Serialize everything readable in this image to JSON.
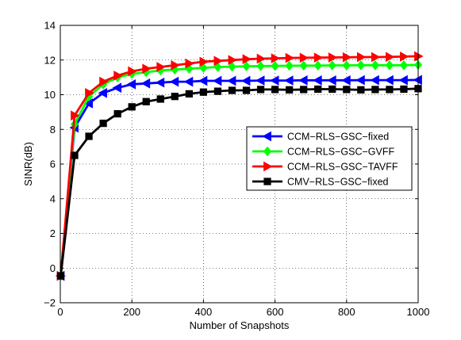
{
  "chart_data": {
    "type": "line",
    "title": "",
    "xlabel": "Number of Snapshots",
    "ylabel": "SINR(dB)",
    "xlim": [
      0,
      1000
    ],
    "ylim": [
      -2,
      14
    ],
    "xticks": [
      0,
      200,
      400,
      600,
      800,
      1000
    ],
    "yticks": [
      -2,
      0,
      2,
      4,
      6,
      8,
      10,
      12,
      14
    ],
    "grid": true,
    "legend_position": "center-right",
    "x": [
      1,
      40,
      80,
      120,
      160,
      200,
      240,
      280,
      320,
      360,
      400,
      440,
      480,
      520,
      560,
      600,
      640,
      680,
      720,
      760,
      800,
      840,
      880,
      920,
      960,
      1000
    ],
    "series": [
      {
        "name": "CCM−RLS−GSC−fixed",
        "color": "#0000ff",
        "marker": "triangle-left",
        "values": [
          -0.45,
          8.1,
          9.5,
          10.1,
          10.4,
          10.6,
          10.65,
          10.7,
          10.75,
          10.75,
          10.8,
          10.8,
          10.8,
          10.8,
          10.82,
          10.82,
          10.82,
          10.83,
          10.83,
          10.83,
          10.83,
          10.84,
          10.84,
          10.84,
          10.84,
          10.85
        ]
      },
      {
        "name": "CCM−RLS−GSC−GVFF",
        "color": "#00ff00",
        "marker": "diamond",
        "values": [
          -0.45,
          8.3,
          9.9,
          10.6,
          11.0,
          11.2,
          11.3,
          11.4,
          11.45,
          11.5,
          11.55,
          11.6,
          11.62,
          11.64,
          11.65,
          11.66,
          11.67,
          11.68,
          11.68,
          11.69,
          11.69,
          11.7,
          11.7,
          11.7,
          11.7,
          11.72
        ]
      },
      {
        "name": "CCM−RLS−GSC−TAVFF",
        "color": "#ff0000",
        "marker": "triangle-right",
        "values": [
          -0.45,
          8.8,
          10.1,
          10.75,
          11.1,
          11.35,
          11.5,
          11.6,
          11.7,
          11.8,
          11.9,
          11.95,
          12.0,
          12.05,
          12.08,
          12.1,
          12.12,
          12.13,
          12.14,
          12.15,
          12.16,
          12.17,
          12.17,
          12.18,
          12.2,
          12.22
        ]
      },
      {
        "name": "CMV−RLS−GSC−fixed",
        "color": "#000000",
        "marker": "square",
        "values": [
          -0.45,
          6.5,
          7.6,
          8.35,
          8.9,
          9.3,
          9.6,
          9.75,
          9.9,
          10.05,
          10.15,
          10.2,
          10.25,
          10.25,
          10.3,
          10.3,
          10.28,
          10.3,
          10.32,
          10.32,
          10.3,
          10.28,
          10.3,
          10.3,
          10.32,
          10.35
        ]
      }
    ]
  }
}
